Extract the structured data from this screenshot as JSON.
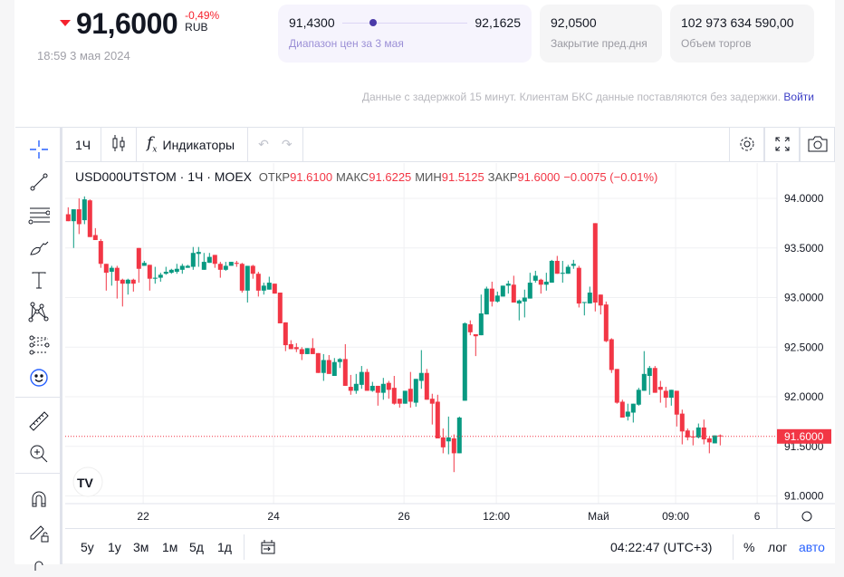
{
  "quote": {
    "price": "91,6000",
    "change": "-0,49%",
    "currency": "RUB",
    "timestamp": "18:59 3 мая 2024"
  },
  "range": {
    "low": "91,4300",
    "high": "92,1625",
    "label": "Диапазон цен за 3 мая",
    "position": 0.22
  },
  "prev_close": {
    "value": "92,0500",
    "label": "Закрытие пред.дня"
  },
  "volume": {
    "value": "102 973 634 590,00",
    "label": "Объем торгов"
  },
  "delay_notice": "Данные с задержкой 15 минут. Клиентам БКС данные поставляются без задержки.",
  "login_link": "Войти",
  "toolbar": {
    "interval": "1Ч",
    "indicators": "Индикаторы"
  },
  "legend": {
    "symbol": "USD000UTSTOM · 1Ч · MOEX",
    "open_label": "ОТКР",
    "open": "91.6100",
    "high_label": "МАКС",
    "high": "91.6225",
    "low_label": "МИН",
    "low": "91.5125",
    "close_label": "ЗАКР",
    "close": "91.6000",
    "change": "−0.0075 (−0.01%)"
  },
  "bottom": {
    "ranges": [
      "5у",
      "1у",
      "3м",
      "1м",
      "5д",
      "1д"
    ],
    "clock": "04:22:47 (UTC+3)",
    "percent": "%",
    "log": "лог",
    "auto": "авто"
  },
  "colors": {
    "up": "#089981",
    "down": "#f23645",
    "accent": "#2962ff"
  },
  "chart_data": {
    "type": "candlestick",
    "symbol": "USD000UTSTOM",
    "interval": "1Ч",
    "ylim": [
      90.95,
      94.2
    ],
    "y_ticks": [
      "94.0000",
      "93.5000",
      "93.0000",
      "92.5000",
      "92.0000",
      "91.5000",
      "91.0000"
    ],
    "y_tick_values": [
      94,
      93.5,
      93,
      92.5,
      92,
      91.5,
      91
    ],
    "x_ticks": [
      {
        "label": "22",
        "index": 13.8
      },
      {
        "label": "24",
        "index": 37.8
      },
      {
        "label": "26",
        "index": 61.8
      },
      {
        "label": "12:00",
        "index": 78.8
      },
      {
        "label": "Май",
        "index": 97.6
      },
      {
        "label": "09:00",
        "index": 111.8
      },
      {
        "label": "6",
        "index": 126.8
      }
    ],
    "last_price": "91.6000",
    "last_value": 91.6,
    "candles_ohlc": [
      [
        93.84,
        93.91,
        93.77,
        93.77
      ],
      [
        93.77,
        93.89,
        93.5,
        93.89
      ],
      [
        93.89,
        94.0,
        93.64,
        93.74
      ],
      [
        93.78,
        94.02,
        93.74,
        93.99
      ],
      [
        93.98,
        93.99,
        93.61,
        93.61
      ],
      [
        93.63,
        93.7,
        93.58,
        93.58
      ],
      [
        93.57,
        93.59,
        93.3,
        93.34
      ],
      [
        93.34,
        93.34,
        93.07,
        93.25
      ],
      [
        93.26,
        93.32,
        93.12,
        93.3
      ],
      [
        93.3,
        93.32,
        92.99,
        93.17
      ],
      [
        93.18,
        93.19,
        92.91,
        93.14
      ],
      [
        93.14,
        93.19,
        93.03,
        93.18
      ],
      [
        93.18,
        93.19,
        93.06,
        93.14
      ],
      [
        93.5,
        93.5,
        93.15,
        93.29
      ],
      [
        93.32,
        93.37,
        93.32,
        93.35
      ],
      [
        93.33,
        93.33,
        93.07,
        93.19
      ],
      [
        93.19,
        93.31,
        93.14,
        93.2
      ],
      [
        93.2,
        93.25,
        93.16,
        93.23
      ],
      [
        93.24,
        93.31,
        93.23,
        93.26
      ],
      [
        93.25,
        93.29,
        93.24,
        93.28
      ],
      [
        93.26,
        93.34,
        93.24,
        93.29
      ],
      [
        93.28,
        93.34,
        93.24,
        93.32
      ],
      [
        93.3,
        93.33,
        93.3,
        93.32
      ],
      [
        93.31,
        93.51,
        93.28,
        93.45
      ],
      [
        93.44,
        93.51,
        93.31,
        93.46
      ],
      [
        93.28,
        93.45,
        93.28,
        93.36
      ],
      [
        93.35,
        93.45,
        93.35,
        93.41
      ],
      [
        93.43,
        93.43,
        93.3,
        93.34
      ],
      [
        93.34,
        93.36,
        93.2,
        93.28
      ],
      [
        93.28,
        93.36,
        93.27,
        93.32
      ],
      [
        93.32,
        93.36,
        93.32,
        93.36
      ],
      [
        93.35,
        93.37,
        93.31,
        93.34
      ],
      [
        93.34,
        93.35,
        93.05,
        93.07
      ],
      [
        93.07,
        93.32,
        92.95,
        93.32
      ],
      [
        93.32,
        93.33,
        93.19,
        93.24
      ],
      [
        93.24,
        93.26,
        93.01,
        93.07
      ],
      [
        93.07,
        93.15,
        93.03,
        93.12
      ],
      [
        93.08,
        93.21,
        93.08,
        93.15
      ],
      [
        93.14,
        93.14,
        93.04,
        93.04
      ],
      [
        93.05,
        93.05,
        92.74,
        92.74
      ],
      [
        92.75,
        92.75,
        92.46,
        92.52
      ],
      [
        92.53,
        92.57,
        92.48,
        92.48
      ],
      [
        92.5,
        92.54,
        92.45,
        92.48
      ],
      [
        92.48,
        92.5,
        92.37,
        92.43
      ],
      [
        92.43,
        92.49,
        92.43,
        92.49
      ],
      [
        92.49,
        92.59,
        92.43,
        92.43
      ],
      [
        92.44,
        92.44,
        92.24,
        92.24
      ],
      [
        92.24,
        92.43,
        92.16,
        92.37
      ],
      [
        92.37,
        92.42,
        92.23,
        92.23
      ],
      [
        92.21,
        92.39,
        92.21,
        92.35
      ],
      [
        92.35,
        92.39,
        92.29,
        92.38
      ],
      [
        92.38,
        92.53,
        92.11,
        92.11
      ],
      [
        92.1,
        92.22,
        92.02,
        92.06
      ],
      [
        92.06,
        92.23,
        92.03,
        92.13
      ],
      [
        92.12,
        92.31,
        92.08,
        92.25
      ],
      [
        92.25,
        92.28,
        92.06,
        92.06
      ],
      [
        92.06,
        92.15,
        92.05,
        92.11
      ],
      [
        92.11,
        92.11,
        91.91,
        92.04
      ],
      [
        92.04,
        92.19,
        91.97,
        92.13
      ],
      [
        92.14,
        92.16,
        91.98,
        92.07
      ],
      [
        92.09,
        92.21,
        91.92,
        91.93
      ],
      [
        91.98,
        91.98,
        91.89,
        91.93
      ],
      [
        91.93,
        92.06,
        91.93,
        92.06
      ],
      [
        92.08,
        92.25,
        91.89,
        91.95
      ],
      [
        91.94,
        92.18,
        91.9,
        92.18
      ],
      [
        92.16,
        92.47,
        92.08,
        92.24
      ],
      [
        92.24,
        92.28,
        91.97,
        91.97
      ],
      [
        91.98,
        92.03,
        91.72,
        91.93
      ],
      [
        91.95,
        92.02,
        91.58,
        91.58
      ],
      [
        91.59,
        91.68,
        91.43,
        91.49
      ],
      [
        91.55,
        91.8,
        91.42,
        91.59
      ],
      [
        91.58,
        91.62,
        91.24,
        91.43
      ],
      [
        91.43,
        91.8,
        91.43,
        91.79
      ],
      [
        91.96,
        92.75,
        91.96,
        92.74
      ],
      [
        92.73,
        92.77,
        92.62,
        92.65
      ],
      [
        92.63,
        92.63,
        92.41,
        92.61
      ],
      [
        92.62,
        93.03,
        92.62,
        92.84
      ],
      [
        92.83,
        93.11,
        92.83,
        93.09
      ],
      [
        93.09,
        93.16,
        92.91,
        92.96
      ],
      [
        92.96,
        93.06,
        92.95,
        93.02
      ],
      [
        93.01,
        93.12,
        93.01,
        93.12
      ],
      [
        93.12,
        93.17,
        93.04,
        93.14
      ],
      [
        93.13,
        93.22,
        92.95,
        92.95
      ],
      [
        92.94,
        92.98,
        92.77,
        92.97
      ],
      [
        92.96,
        93.08,
        92.8,
        93.0
      ],
      [
        92.99,
        93.25,
        92.99,
        93.15
      ],
      [
        93.17,
        93.27,
        93.15,
        93.22
      ],
      [
        93.18,
        93.19,
        93.04,
        93.13
      ],
      [
        93.13,
        93.25,
        93.07,
        93.16
      ],
      [
        93.15,
        93.38,
        93.15,
        93.37
      ],
      [
        93.37,
        93.42,
        93.24,
        93.24
      ],
      [
        93.24,
        93.37,
        93.15,
        93.25
      ],
      [
        93.24,
        93.33,
        93.24,
        93.31
      ],
      [
        93.32,
        93.38,
        93.29,
        93.34
      ],
      [
        93.3,
        93.32,
        92.9,
        92.94
      ],
      [
        92.95,
        92.95,
        92.82,
        92.955
      ],
      [
        92.94,
        93.11,
        92.94,
        93.05
      ],
      [
        93.75,
        93.75,
        92.86,
        92.95
      ],
      [
        93.03,
        93.03,
        92.83,
        92.92
      ],
      [
        92.93,
        92.96,
        92.55,
        92.56
      ],
      [
        92.58,
        92.59,
        92.24,
        92.27
      ],
      [
        92.28,
        92.28,
        91.93,
        91.94
      ],
      [
        91.95,
        91.97,
        91.79,
        91.79
      ],
      [
        91.8,
        91.93,
        91.76,
        91.85
      ],
      [
        91.84,
        91.93,
        91.74,
        91.93
      ],
      [
        91.92,
        92.09,
        91.91,
        92.07
      ],
      [
        92.06,
        92.46,
        92.06,
        92.23
      ],
      [
        92.21,
        92.31,
        92.02,
        92.29
      ],
      [
        92.29,
        92.31,
        92.04,
        92.04
      ],
      [
        92.1,
        92.16,
        91.94,
        92.07
      ],
      [
        92.06,
        92.1,
        91.89,
        91.99
      ],
      [
        91.99,
        92.07,
        91.91,
        92.07
      ],
      [
        92.06,
        92.06,
        91.7,
        91.82
      ],
      [
        91.83,
        91.87,
        91.52,
        91.65
      ],
      [
        91.66,
        91.68,
        91.56,
        91.59
      ],
      [
        91.6,
        91.66,
        91.51,
        91.59
      ],
      [
        91.59,
        91.73,
        91.58,
        91.69
      ],
      [
        91.69,
        91.77,
        91.52,
        91.57
      ],
      [
        91.58,
        91.6,
        91.43,
        91.54
      ],
      [
        91.53,
        91.61,
        91.53,
        91.61
      ],
      [
        91.61,
        91.62,
        91.51,
        91.6
      ]
    ]
  }
}
